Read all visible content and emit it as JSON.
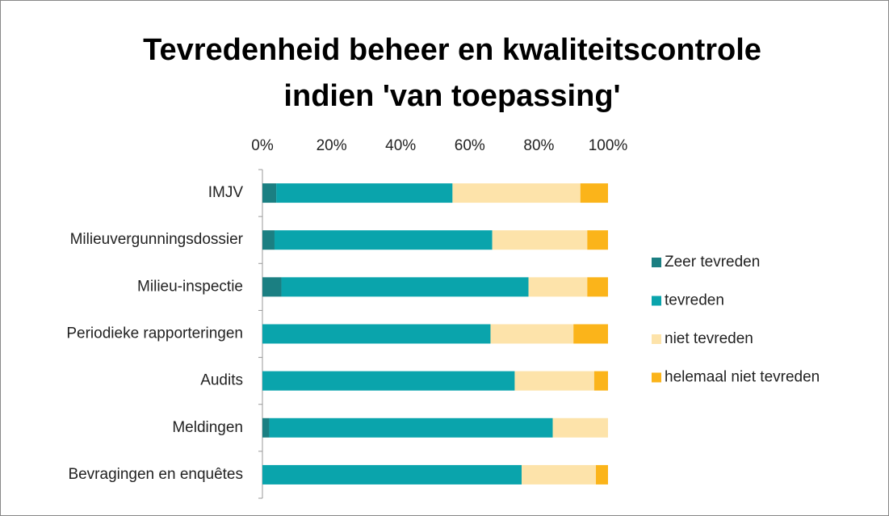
{
  "chart_data": {
    "type": "stacked-barh",
    "title": [
      "Tevredenheid beheer en kwaliteitscontrole",
      "indien 'van toepassing'"
    ],
    "categories": [
      "IMJV",
      "Milieuvergunningsdossier",
      "Milieu-inspectie",
      "Periodieke rapporteringen",
      "Audits",
      "Meldingen",
      "Bevragingen en enquêtes"
    ],
    "series": [
      {
        "name": "Zeer tevreden",
        "color": "#1b7f82",
        "values": [
          4,
          3.5,
          5.5,
          0,
          0,
          2,
          0
        ]
      },
      {
        "name": "tevreden",
        "color": "#0aa4ac",
        "values": [
          51,
          63,
          71.5,
          66,
          73,
          82,
          75
        ]
      },
      {
        "name": "niet tevreden",
        "color": "#fde3aa",
        "values": [
          37,
          27.5,
          17,
          24,
          23,
          16,
          21.5
        ]
      },
      {
        "name": "helemaal niet tevreden",
        "color": "#fbb41a",
        "values": [
          8,
          6,
          6,
          10,
          4,
          0,
          3.5
        ]
      }
    ],
    "xlim": [
      0,
      100
    ],
    "xticks": [
      {
        "value": 0,
        "label": "0%"
      },
      {
        "value": 20,
        "label": "20%"
      },
      {
        "value": 40,
        "label": "40%"
      },
      {
        "value": 60,
        "label": "60%"
      },
      {
        "value": 80,
        "label": "80%"
      },
      {
        "value": 100,
        "label": "100%"
      }
    ],
    "legend": "right"
  }
}
